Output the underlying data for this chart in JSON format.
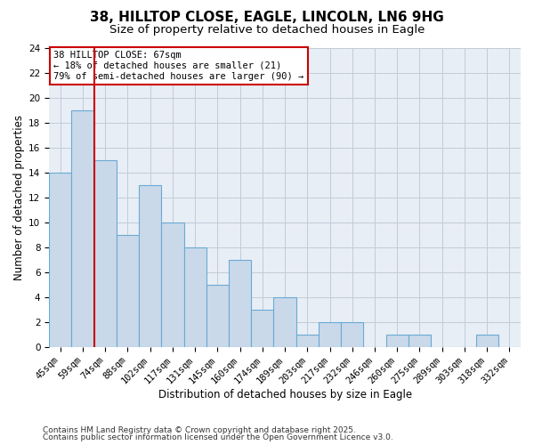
{
  "title": "38, HILLTOP CLOSE, EAGLE, LINCOLN, LN6 9HG",
  "subtitle": "Size of property relative to detached houses in Eagle",
  "xlabel": "Distribution of detached houses by size in Eagle",
  "ylabel": "Number of detached properties",
  "categories": [
    "45sqm",
    "59sqm",
    "74sqm",
    "88sqm",
    "102sqm",
    "117sqm",
    "131sqm",
    "145sqm",
    "160sqm",
    "174sqm",
    "189sqm",
    "203sqm",
    "217sqm",
    "232sqm",
    "246sqm",
    "260sqm",
    "275sqm",
    "289sqm",
    "303sqm",
    "318sqm",
    "332sqm"
  ],
  "values": [
    14,
    19,
    15,
    9,
    13,
    10,
    8,
    5,
    7,
    3,
    4,
    1,
    2,
    2,
    0,
    1,
    1,
    0,
    0,
    1,
    0
  ],
  "bar_color": "#c9d9ea",
  "bar_edge_color": "#6aaad4",
  "vline_x": 1.5,
  "vline_color": "#cc0000",
  "ylim": [
    0,
    24
  ],
  "yticks": [
    0,
    2,
    4,
    6,
    8,
    10,
    12,
    14,
    16,
    18,
    20,
    22,
    24
  ],
  "annotation_text_line1": "38 HILLTOP CLOSE: 67sqm",
  "annotation_text_line2": "← 18% of detached houses are smaller (21)",
  "annotation_text_line3": "79% of semi-detached houses are larger (90) →",
  "footer_line1": "Contains HM Land Registry data © Crown copyright and database right 2025.",
  "footer_line2": "Contains public sector information licensed under the Open Government Licence v3.0.",
  "bg_color": "#ffffff",
  "plot_bg_color": "#e8eef5",
  "grid_color": "#c0ccd8",
  "title_fontsize": 11,
  "subtitle_fontsize": 9.5,
  "axis_label_fontsize": 8.5,
  "tick_fontsize": 7.5,
  "annotation_fontsize": 7.5,
  "footer_fontsize": 6.5
}
